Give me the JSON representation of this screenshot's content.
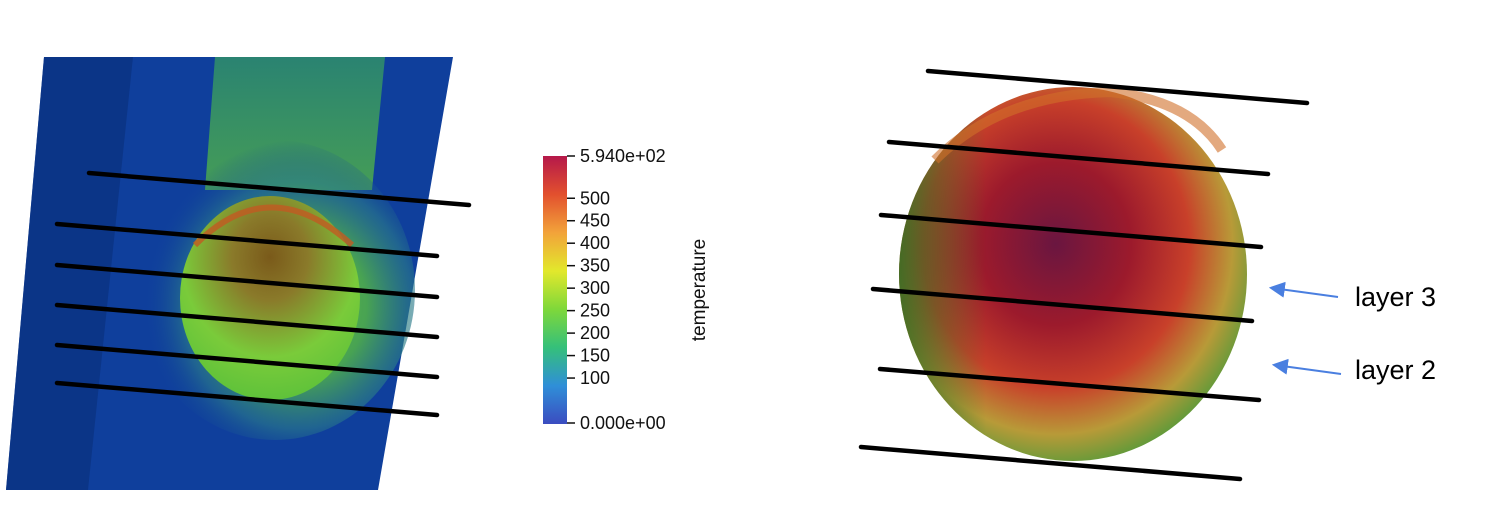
{
  "colorbar": {
    "title": "temperature",
    "max_label": "5.940e+02",
    "min_label": "0.000e+00",
    "ticks": [
      "500",
      "450",
      "400",
      "350",
      "300",
      "250",
      "200",
      "150",
      "100"
    ],
    "range": [
      0,
      594
    ],
    "colormap": [
      "#3b4cc0",
      "#2f8fd8",
      "#35c07a",
      "#7fd83a",
      "#e2e82c",
      "#f2a33a",
      "#e2502e",
      "#b5184a"
    ]
  },
  "annotations": {
    "layer3": "layer 3",
    "layer2": "layer 2",
    "arrow_color": "#4a7fe0"
  },
  "colors": {
    "slab": "#0f3f9c",
    "slab_dark": "#0b3380",
    "line": "#000000"
  }
}
